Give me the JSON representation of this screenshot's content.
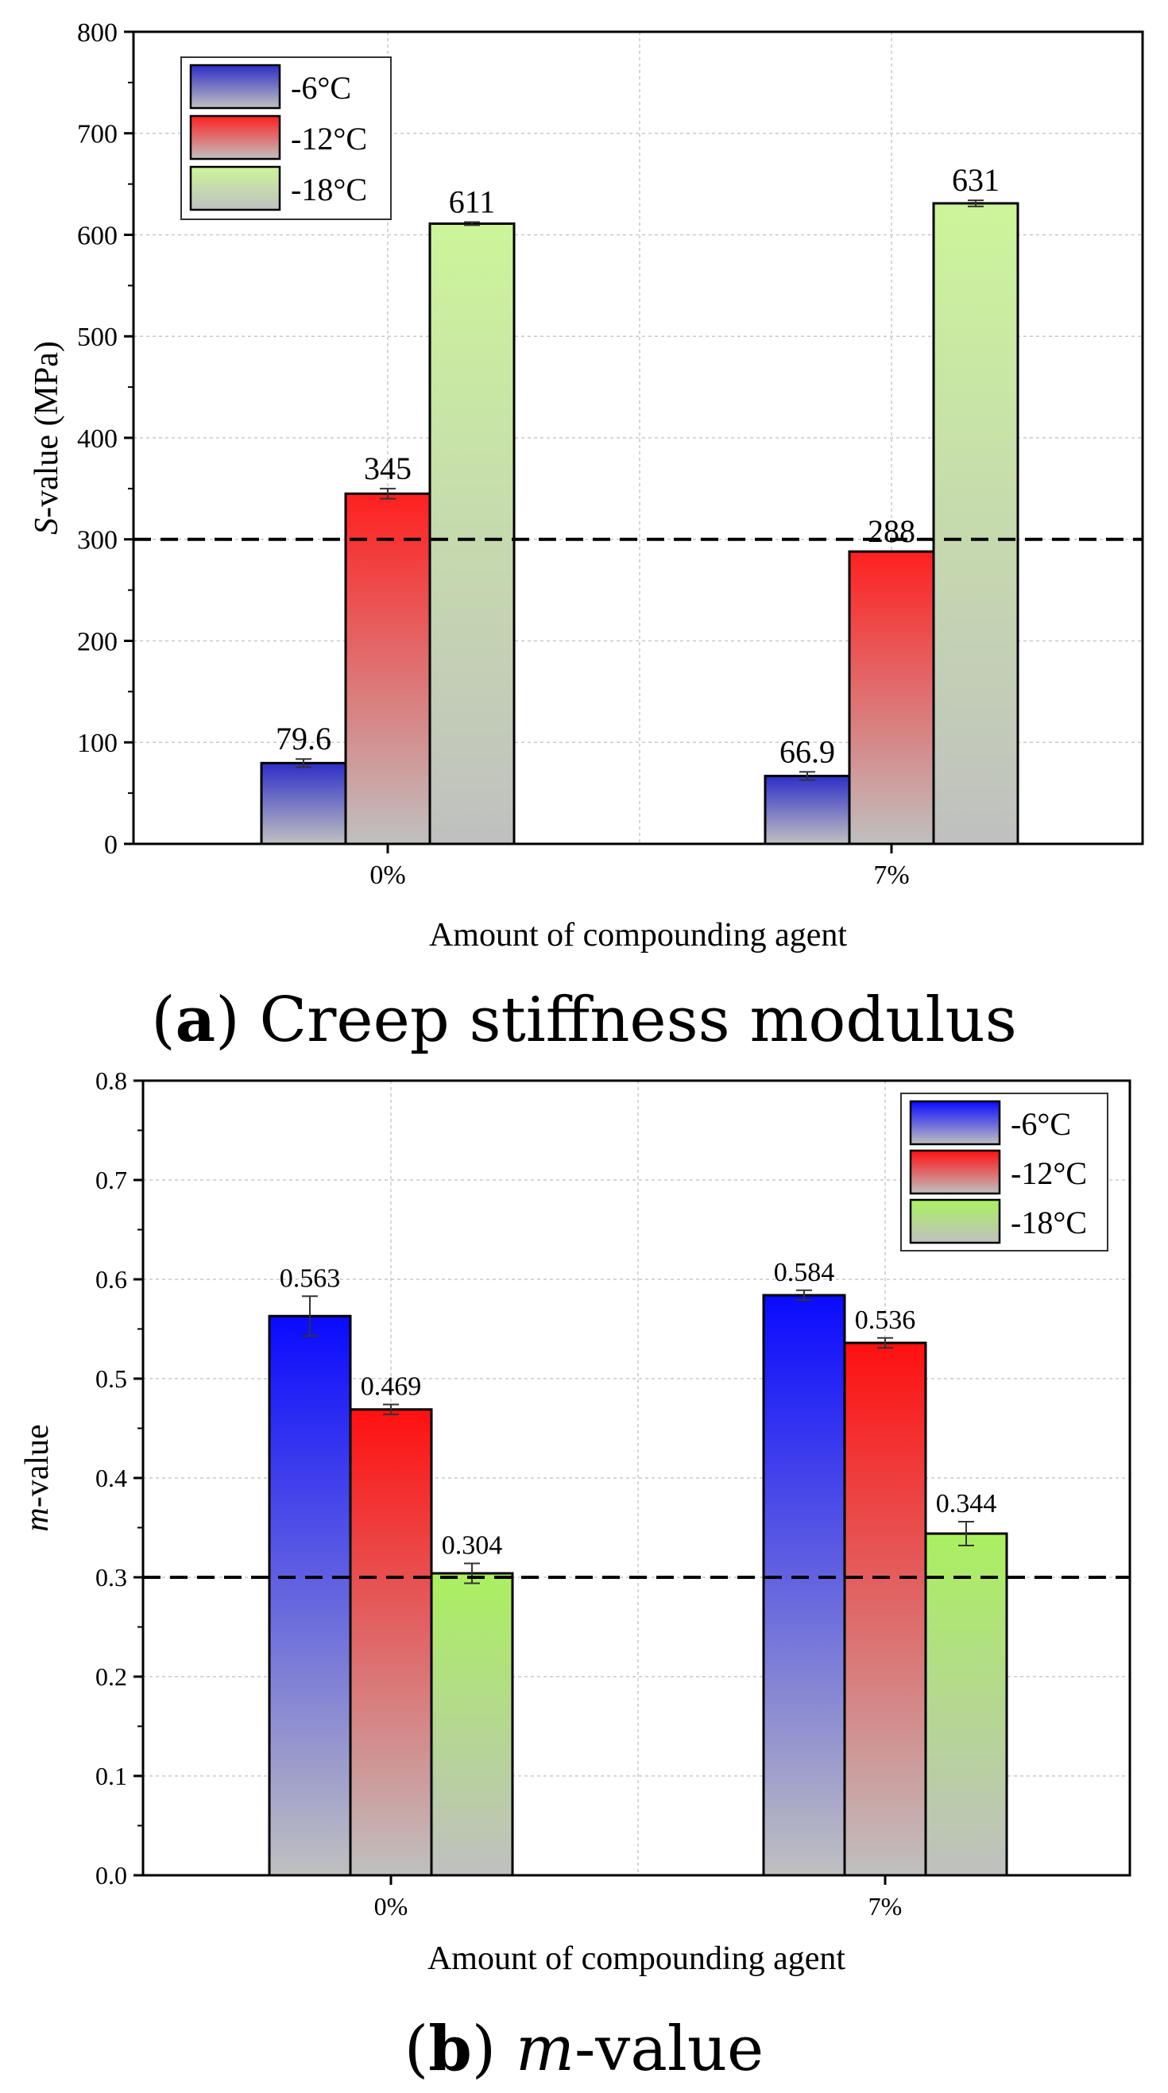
{
  "chart_data": [
    {
      "type": "bar",
      "panel_label": "a",
      "caption": "Creep stiffness modulus",
      "title": "",
      "xlabel": "Amount of compounding agent",
      "ylabel_italic": "S",
      "ylabel_rest": "-value (MPa)",
      "categories": [
        "0%",
        "7%"
      ],
      "ylim": [
        0,
        800
      ],
      "yticks": [
        "0",
        "100",
        "200",
        "300",
        "400",
        "500",
        "600",
        "700",
        "800"
      ],
      "ytick_values": [
        0,
        100,
        200,
        300,
        400,
        500,
        600,
        700,
        800
      ],
      "reference_line": 300,
      "legend_position": "top-left",
      "grid": true,
      "series": [
        {
          "name": "-6°C",
          "values": [
            79.6,
            66.9
          ],
          "errors": [
            4,
            4
          ],
          "labels": [
            "79.6",
            "66.9"
          ],
          "color": "#2e2ec8"
        },
        {
          "name": "-12°C",
          "values": [
            345,
            288
          ],
          "errors": [
            5,
            0
          ],
          "labels": [
            "345",
            "288"
          ],
          "color": "#ff2020"
        },
        {
          "name": "-18°C",
          "values": [
            611,
            631
          ],
          "errors": [
            1.5,
            3
          ],
          "labels": [
            "611",
            "631"
          ],
          "color": "#ccf59a"
        }
      ]
    },
    {
      "type": "bar",
      "panel_label": "b",
      "caption": "m-value",
      "caption_italic": "m",
      "caption_rest": "-value",
      "title": "",
      "xlabel": "Amount of compounding agent",
      "ylabel_italic": "m",
      "ylabel_rest": "-value",
      "categories": [
        "0%",
        "7%"
      ],
      "ylim": [
        0,
        0.8
      ],
      "yticks": [
        "0.0",
        "0.1",
        "0.2",
        "0.3",
        "0.4",
        "0.5",
        "0.6",
        "0.7",
        "0.8"
      ],
      "ytick_values": [
        0,
        0.1,
        0.2,
        0.3,
        0.4,
        0.5,
        0.6,
        0.7,
        0.8
      ],
      "reference_line": 0.3,
      "legend_position": "top-right",
      "grid": true,
      "series": [
        {
          "name": "-6°C",
          "values": [
            0.563,
            0.584
          ],
          "errors": [
            0.02,
            0.005
          ],
          "labels": [
            "0.563",
            "0.584"
          ],
          "color": "#0a0aff"
        },
        {
          "name": "-12°C",
          "values": [
            0.469,
            0.536
          ],
          "errors": [
            0.005,
            0.005
          ],
          "labels": [
            "0.469",
            "0.536"
          ],
          "color": "#ff1010"
        },
        {
          "name": "-18°C",
          "values": [
            0.304,
            0.344
          ],
          "errors": [
            0.01,
            0.012
          ],
          "labels": [
            "0.304",
            "0.344"
          ],
          "color": "#aaf060"
        }
      ]
    }
  ]
}
